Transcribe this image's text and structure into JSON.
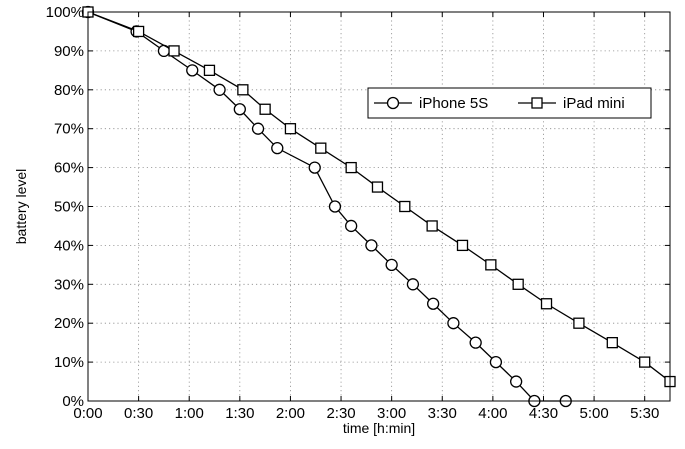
{
  "chart_data": {
    "type": "line",
    "xlabel": "time [h:min]",
    "ylabel": "battery level",
    "xlim": [
      0,
      5.75
    ],
    "ylim": [
      0,
      100
    ],
    "x_ticks": [
      {
        "value": 0,
        "label": "0:00"
      },
      {
        "value": 0.5,
        "label": "0:30"
      },
      {
        "value": 1,
        "label": "1:00"
      },
      {
        "value": 1.5,
        "label": "1:30"
      },
      {
        "value": 2,
        "label": "2:00"
      },
      {
        "value": 2.5,
        "label": "2:30"
      },
      {
        "value": 3,
        "label": "3:00"
      },
      {
        "value": 3.5,
        "label": "3:30"
      },
      {
        "value": 4,
        "label": "4:00"
      },
      {
        "value": 4.5,
        "label": "4:30"
      },
      {
        "value": 5,
        "label": "5:00"
      },
      {
        "value": 5.5,
        "label": "5:30"
      }
    ],
    "y_ticks": [
      {
        "value": 0,
        "label": "0%"
      },
      {
        "value": 10,
        "label": "10%"
      },
      {
        "value": 20,
        "label": "20%"
      },
      {
        "value": 30,
        "label": "30%"
      },
      {
        "value": 40,
        "label": "40%"
      },
      {
        "value": 50,
        "label": "50%"
      },
      {
        "value": 60,
        "label": "60%"
      },
      {
        "value": 70,
        "label": "70%"
      },
      {
        "value": 80,
        "label": "80%"
      },
      {
        "value": 90,
        "label": "90%"
      },
      {
        "value": 100,
        "label": "100%"
      }
    ],
    "grid": true,
    "legend_position": "top-right",
    "series": [
      {
        "name": "iPhone 5S",
        "marker": "circle",
        "x": [
          0,
          0.48,
          0.75,
          1.03,
          1.3,
          1.5,
          1.68,
          1.87,
          2.24,
          2.44,
          2.6,
          2.8,
          3.0,
          3.21,
          3.41,
          3.61,
          3.83,
          4.03,
          4.23,
          4.41,
          4.72
        ],
        "y": [
          100,
          95,
          90,
          85,
          80,
          75,
          70,
          65,
          60,
          50,
          45,
          40,
          35,
          30,
          25,
          20,
          15,
          10,
          5,
          0,
          0
        ]
      },
      {
        "name": "iPad mini",
        "marker": "square",
        "x": [
          0,
          0.5,
          0.85,
          1.2,
          1.53,
          1.75,
          2.0,
          2.3,
          2.6,
          2.86,
          3.13,
          3.4,
          3.7,
          3.98,
          4.25,
          4.53,
          4.85,
          5.18,
          5.5,
          5.75
        ],
        "y": [
          100,
          95,
          90,
          85,
          80,
          75,
          70,
          65,
          60,
          55,
          50,
          45,
          40,
          35,
          30,
          25,
          20,
          15,
          10,
          5
        ]
      }
    ]
  }
}
